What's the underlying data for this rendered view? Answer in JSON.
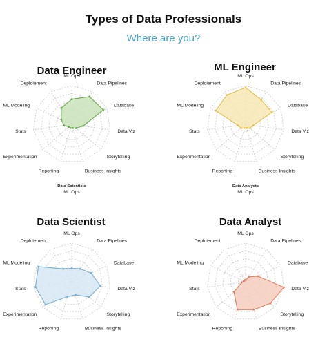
{
  "header": {
    "title": "Types of Data Professionals",
    "subtitle": "Where are you?"
  },
  "chart_data": [
    {
      "type": "radar",
      "title": "Data Engineer",
      "axes": [
        "ML Ops",
        "Data Pipelines",
        "Database",
        "Data Viz",
        "Storytelling",
        "Business Insights",
        "Reporting",
        "Experimentation",
        "Stats",
        "ML Modeling",
        "Deploiement"
      ],
      "values": [
        0.65,
        0.85,
        0.9,
        0.3,
        0.15,
        0.1,
        0.1,
        0.1,
        0.2,
        0.3,
        0.5
      ],
      "rlim": [
        0,
        1
      ],
      "color": "#6aa84f",
      "fill": "#c9e3b8",
      "legend": {
        "title": "Data Scientists",
        "item": "ML Ops"
      }
    },
    {
      "type": "radar",
      "title": "ML Engineer",
      "axes": [
        "ML Ops",
        "Data Pipelines",
        "Database",
        "Data Viz",
        "Storytelling",
        "Business Insights",
        "Reporting",
        "Experimentation",
        "Stats",
        "ML Modeling",
        "Deploiement"
      ],
      "values": [
        0.95,
        0.75,
        0.75,
        0.2,
        0.15,
        0.1,
        0.1,
        0.15,
        0.2,
        0.85,
        0.9
      ],
      "rlim": [
        0,
        1
      ],
      "color": "#e2c04a",
      "fill": "#f6e8b4",
      "legend": {
        "title": "Data Analysts",
        "item": "ML Ops"
      }
    },
    {
      "type": "radar",
      "title": "Data Scientist",
      "axes": [
        "ML Ops",
        "Data Pipelines",
        "Database",
        "Data Viz",
        "Storytelling",
        "Business Insights",
        "Reporting",
        "Experimentation",
        "Stats",
        "ML Modeling",
        "Deploiement"
      ],
      "values": [
        0.35,
        0.4,
        0.55,
        0.75,
        0.6,
        0.35,
        0.4,
        0.9,
        0.95,
        0.95,
        0.4
      ],
      "rlim": [
        0,
        1
      ],
      "color": "#7aaed0",
      "fill": "#d6e8f3"
    },
    {
      "type": "radar",
      "title": "Data Analyst",
      "axes": [
        "ML Ops",
        "Data Pipelines",
        "Database",
        "Data Viz",
        "Storytelling",
        "Business Insights",
        "Reporting",
        "Experimentation",
        "Stats",
        "ML Modeling",
        "Deploiement"
      ],
      "values": [
        0.05,
        0.15,
        0.35,
        1.0,
        0.85,
        0.75,
        0.75,
        0.4,
        0.1,
        0.05,
        0.05
      ],
      "rlim": [
        0,
        1
      ],
      "color": "#e08060",
      "fill": "#f5cdbd"
    }
  ]
}
